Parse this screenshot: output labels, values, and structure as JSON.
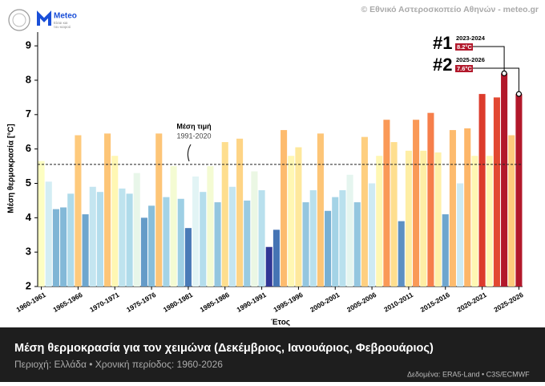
{
  "chart_data": {
    "type": "bar",
    "title": "Μέση θερμοκρασία για τον χειμώνα (Δεκέμβριος, Ιανουάριος, Φεβρουάριος)",
    "subtitle": "Περιοχή: Ελλάδα • Χρονική περίοδος: 1960-2026",
    "source": "Δεδομένα: ERA5-Land • C3S/ECMWF",
    "copyright": "© Εθνικό Αστεροσκοπείο Αθηνών - meteo.gr",
    "logo": {
      "name": "Meteo",
      "tagline1": "Είσαι και",
      "tagline2": "του καιρού"
    },
    "x_label": "Έτος",
    "y_label": "Μέση θερμοκρασία [°C]",
    "categories": [
      "1960-1961",
      null,
      null,
      null,
      null,
      "1965-1966",
      null,
      null,
      null,
      null,
      "1970-1971",
      null,
      null,
      null,
      null,
      "1975-1976",
      null,
      null,
      null,
      null,
      "1980-1981",
      null,
      null,
      null,
      null,
      "1985-1986",
      null,
      null,
      null,
      null,
      "1990-1991",
      null,
      null,
      null,
      null,
      "1995-1996",
      null,
      null,
      null,
      null,
      "2000-2001",
      null,
      null,
      null,
      null,
      "2005-2006",
      null,
      null,
      null,
      null,
      "2010-2011",
      null,
      null,
      null,
      null,
      "2015-2016",
      null,
      null,
      null,
      null,
      "2020-2021",
      null,
      null,
      null,
      null,
      "2025-2026"
    ],
    "values": [
      5.65,
      5.05,
      4.25,
      4.3,
      4.7,
      6.4,
      4.1,
      4.9,
      4.75,
      6.45,
      5.8,
      4.85,
      4.7,
      5.3,
      4.0,
      4.35,
      6.45,
      4.6,
      5.5,
      4.55,
      3.7,
      5.2,
      4.75,
      5.5,
      4.45,
      6.2,
      4.9,
      6.3,
      4.5,
      5.35,
      4.8,
      3.15,
      3.65,
      6.55,
      5.8,
      6.05,
      4.45,
      4.8,
      6.45,
      4.2,
      4.6,
      4.8,
      5.25,
      4.45,
      6.35,
      5.0,
      5.8,
      6.85,
      6.2,
      3.9,
      5.95,
      6.85,
      5.95,
      7.05,
      5.9,
      4.1,
      6.55,
      5.0,
      6.6,
      5.8,
      7.6,
      5.8,
      7.5,
      8.2,
      6.4,
      7.6
    ],
    "colormap": [
      "#313695",
      "#4575b4",
      "#74add1",
      "#abd9e9",
      "#e0f3f8",
      "#ffffbf",
      "#fee090",
      "#fdae61",
      "#f46d43",
      "#d73027",
      "#a50026"
    ],
    "highlight_color": "#b2182b",
    "ylim": [
      2,
      9.4
    ],
    "yticks": [
      2,
      3,
      4,
      5,
      6,
      7,
      8,
      9
    ],
    "mean_line": {
      "value": 5.55,
      "label": "Μέση τιμή",
      "period": "1991-2020"
    },
    "highlights": [
      {
        "rank": "#1",
        "season": "2023-2024",
        "value": 8.2,
        "value_label": "8.2°C"
      },
      {
        "rank": "#2",
        "season": "2025-2026",
        "value": 7.6,
        "value_label": "7.6°C"
      }
    ],
    "grid": false
  }
}
